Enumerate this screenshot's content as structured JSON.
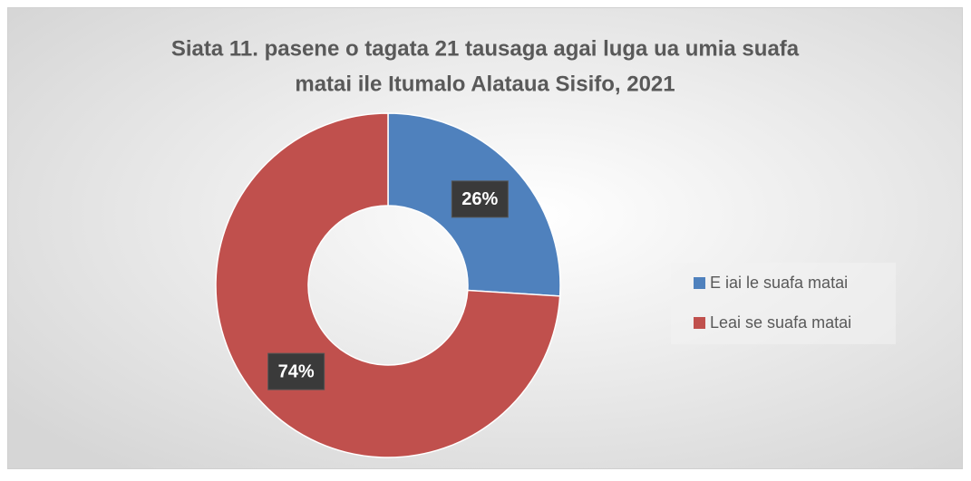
{
  "chart_data": {
    "type": "donut",
    "title": [
      "Siata 11. pasene o tagata 21 tausaga agai luga ua umia suafa",
      "matai ile Itumalo Alataua Sisifo, 2021"
    ],
    "categories": [
      "E iai le suafa matai",
      "Leai se suafa matai"
    ],
    "values": [
      26,
      74
    ],
    "value_labels": [
      "26%",
      "74%"
    ],
    "colors": [
      "#4f81bd",
      "#c0504d"
    ],
    "legend": "right"
  }
}
